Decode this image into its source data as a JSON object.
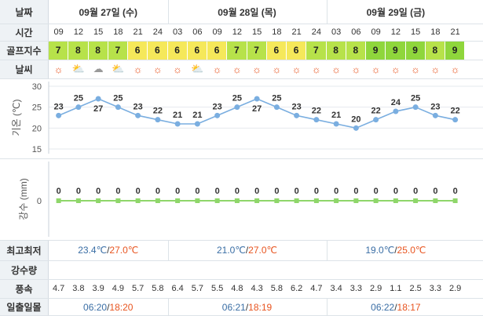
{
  "labels": {
    "date": "날짜",
    "time": "시간",
    "golf": "골프지수",
    "weather": "날씨",
    "temp_axis": "기온 (℃)",
    "rain_axis": "강수 (mm)",
    "minmax": "최고최저",
    "rain": "강수량",
    "wind": "풍속",
    "sun": "일출일몰"
  },
  "days": [
    {
      "title": "09월 27일 (수)",
      "min": "23.4℃",
      "max": "27.0℃",
      "sunrise": "06:20",
      "sunset": "18:20"
    },
    {
      "title": "09월 28일 (목)",
      "min": "21.0℃",
      "max": "27.0℃",
      "sunrise": "06:21",
      "sunset": "18:19"
    },
    {
      "title": "09월 29일 (금)",
      "min": "19.0℃",
      "max": "25.0℃",
      "sunrise": "06:22",
      "sunset": "18:17"
    }
  ],
  "times": [
    "09",
    "12",
    "15",
    "18",
    "21",
    "24",
    "03",
    "06",
    "09",
    "12",
    "15",
    "18",
    "21",
    "24",
    "03",
    "06",
    "09",
    "12",
    "15",
    "18",
    "21"
  ],
  "golf": [
    7,
    8,
    8,
    7,
    6,
    6,
    6,
    6,
    6,
    7,
    7,
    6,
    6,
    7,
    8,
    8,
    9,
    9,
    9,
    8,
    9
  ],
  "weather_icons": [
    "sun-icon",
    "partly-cloudy-icon",
    "cloudy-icon",
    "partly-cloudy-icon",
    "sun-icon",
    "sun-icon",
    "sun-icon",
    "partly-cloudy-icon",
    "sun-icon",
    "sun-icon",
    "sun-icon",
    "sun-icon",
    "sun-icon",
    "sun-icon",
    "sun-icon",
    "sun-icon",
    "sun-icon",
    "sun-icon",
    "sun-icon",
    "sun-icon",
    "sun-icon"
  ],
  "wind": [
    "4.7",
    "3.8",
    "3.9",
    "4.9",
    "5.7",
    "5.8",
    "6.4",
    "5.7",
    "5.5",
    "4.8",
    "4.3",
    "5.8",
    "6.2",
    "4.7",
    "3.4",
    "3.3",
    "2.9",
    "1.1",
    "2.5",
    "3.3",
    "2.9"
  ],
  "colors": {
    "golf_high": "#b7e24a",
    "golf_mid": "#f5e85a",
    "golf_top": "#8fd63c",
    "line": "#7aaee0",
    "rain_line": "#8fd66a",
    "max": "#e8541f",
    "min": "#3a6ea5"
  },
  "chart_data": [
    {
      "type": "line",
      "title": "",
      "ylabel": "기온 (℃)",
      "ylim": [
        15,
        30
      ],
      "yticks": [
        15,
        20,
        25,
        30
      ],
      "x": [
        "09",
        "12",
        "15",
        "18",
        "21",
        "24",
        "03",
        "06",
        "09",
        "12",
        "15",
        "18",
        "21",
        "24",
        "03",
        "06",
        "09",
        "12",
        "15",
        "18",
        "21"
      ],
      "series": [
        {
          "values": [
            23,
            25,
            27,
            25,
            23,
            22,
            21,
            21,
            23,
            25,
            27,
            25,
            23,
            22,
            21,
            20,
            22,
            24,
            25,
            23,
            22
          ]
        }
      ]
    },
    {
      "type": "line",
      "title": "",
      "ylabel": "강수 (mm)",
      "yticks": [
        0
      ],
      "x": [
        "09",
        "12",
        "15",
        "18",
        "21",
        "24",
        "03",
        "06",
        "09",
        "12",
        "15",
        "18",
        "21",
        "24",
        "03",
        "06",
        "09",
        "12",
        "15",
        "18",
        "21"
      ],
      "series": [
        {
          "values": [
            0,
            0,
            0,
            0,
            0,
            0,
            0,
            0,
            0,
            0,
            0,
            0,
            0,
            0,
            0,
            0,
            0,
            0,
            0,
            0,
            0
          ]
        }
      ]
    }
  ]
}
